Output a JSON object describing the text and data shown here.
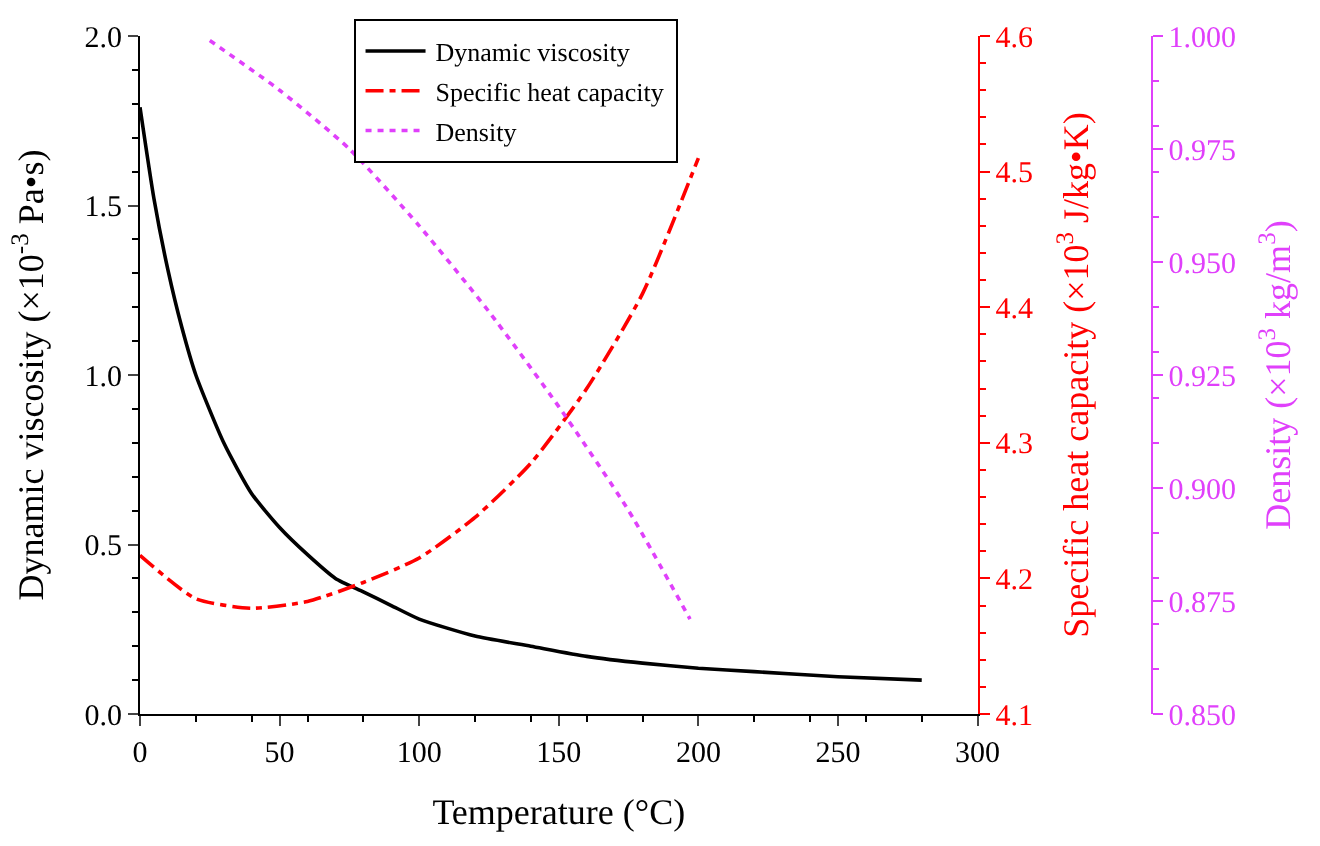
{
  "chart_data": {
    "type": "line",
    "xlabel": "Temperature (°C)",
    "ylabel": "Dynamic viscosity (×10$^{-3}$ Pa•s)",
    "y2label": "Specific heat capacity (×10$^{3}$ J/kg•K)",
    "y3label": "Density (×10$^{3}$ kg/m$^{3}$)",
    "xlim": [
      0,
      300
    ],
    "xticks": [
      0,
      50,
      100,
      150,
      200,
      250,
      300
    ],
    "ylim": [
      0,
      2
    ],
    "yticks": [
      {
        "value": 0,
        "label": "0.0"
      },
      0.5,
      {
        "value": 1,
        "label": "1.0"
      },
      1.5,
      {
        "value": 2,
        "label": "2.0"
      }
    ],
    "y2lim": [
      4.1,
      4.6
    ],
    "y2ticks": [
      4.1,
      4.2,
      4.3,
      4.4,
      4.5,
      4.6
    ],
    "y3lim": [
      0.85,
      1.0
    ],
    "y3ticks": [
      {
        "value": 0.85,
        "label": "0.850"
      },
      {
        "value": 0.875,
        "label": "0.875"
      },
      {
        "value": 0.9,
        "label": "0.900"
      },
      {
        "value": 0.925,
        "label": "0.925"
      },
      {
        "value": 0.95,
        "label": "0.950"
      },
      {
        "value": 0.975,
        "label": "0.975"
      },
      {
        "value": 1.0,
        "label": "1.000"
      }
    ],
    "legend": "top",
    "marker": "none",
    "series": [
      {
        "name": "Dynamic viscosity",
        "color": "#000000",
        "line_style": "solid",
        "x": [
          0,
          5,
          10,
          15,
          20,
          30,
          40,
          50,
          60,
          70,
          80,
          90,
          100,
          120,
          140,
          160,
          180,
          200,
          220,
          250,
          280
        ],
        "values": [
          1.79,
          1.52,
          1.31,
          1.14,
          1.0,
          0.8,
          0.65,
          0.55,
          0.47,
          0.4,
          0.36,
          0.32,
          0.28,
          0.23,
          0.2,
          0.17,
          0.15,
          0.135,
          0.125,
          0.11,
          0.1
        ]
      },
      {
        "name": "Specific heat capacity",
        "color": "#ff0000",
        "line_style": "dashdot",
        "axis": "y2",
        "x": [
          0,
          20,
          40,
          60,
          80,
          100,
          120,
          140,
          160,
          180,
          200
        ],
        "values": [
          4.217,
          4.185,
          4.178,
          4.183,
          4.197,
          4.215,
          4.245,
          4.285,
          4.34,
          4.41,
          4.51
        ]
      },
      {
        "name": "Density",
        "color": "#e040fb",
        "line_style": "dotted",
        "axis": "y3",
        "x": [
          25,
          50,
          75,
          100,
          125,
          150,
          175,
          197
        ],
        "values": [
          0.999,
          0.988,
          0.975,
          0.958,
          0.939,
          0.918,
          0.895,
          0.871
        ]
      }
    ]
  }
}
